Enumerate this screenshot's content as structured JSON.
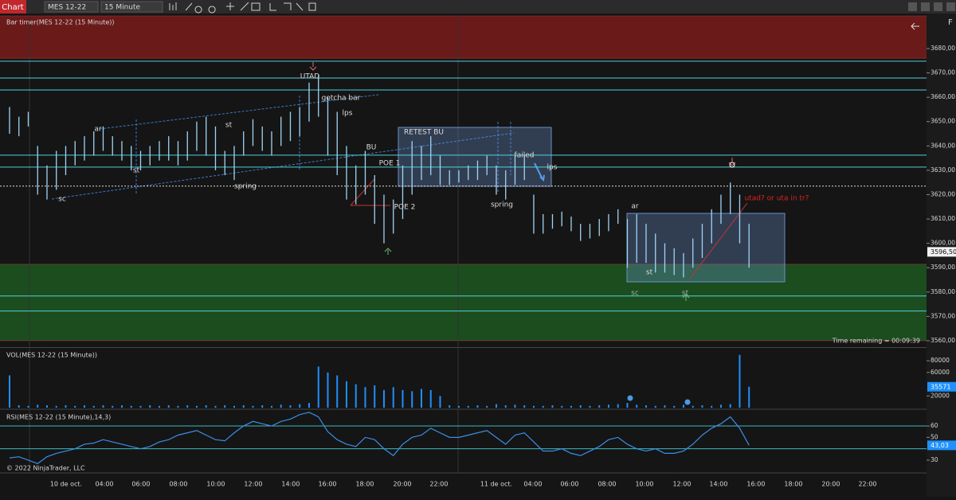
{
  "toolbar": {
    "tab": "Chart",
    "instrument": "MES 12-22",
    "interval": "15 Minute"
  },
  "copyright": "© 2022 NinjaTrader, LLC",
  "chart_data": [
    {
      "type": "ohlc",
      "title": "Bar timer(MES 12-22 (15 Minute))",
      "timer": "Time remaining = 00:09:39",
      "color": "#9fd4f5",
      "high": [
        3656,
        3652,
        3654,
        3640,
        3632,
        3638,
        3640,
        3642,
        3644,
        3646,
        3648,
        3644,
        3642,
        3640,
        3638,
        3640,
        3642,
        3644,
        3642,
        3646,
        3650,
        3652,
        3648,
        3638,
        3640,
        3646,
        3651,
        3648,
        3646,
        3652,
        3654,
        3656,
        3666,
        3669,
        3660,
        3654,
        3640,
        3632,
        3638,
        3628,
        3620,
        3618,
        3632,
        3642,
        3640,
        3644,
        3636,
        3630,
        3630,
        3632,
        3634,
        3636,
        3632,
        3630,
        3636,
        3636,
        3620,
        3612,
        3612,
        3613,
        3611,
        3608,
        3608,
        3610,
        3612,
        3614,
        3610,
        3612,
        3608,
        3604,
        3600,
        3598,
        3596,
        3602,
        3608,
        3614,
        3620,
        3625,
        3620,
        3608
      ],
      "low": [
        3645,
        3644,
        3648,
        3620,
        3618,
        3622,
        3628,
        3632,
        3634,
        3636,
        3638,
        3636,
        3634,
        3630,
        3630,
        3632,
        3634,
        3634,
        3632,
        3634,
        3638,
        3636,
        3630,
        3628,
        3626,
        3636,
        3640,
        3638,
        3636,
        3640,
        3642,
        3644,
        3650,
        3652,
        3636,
        3628,
        3618,
        3616,
        3620,
        3608,
        3600,
        3604,
        3610,
        3620,
        3626,
        3628,
        3624,
        3624,
        3625,
        3626,
        3626,
        3628,
        3620,
        3618,
        3624,
        3626,
        3604,
        3604,
        3606,
        3607,
        3605,
        3601,
        3602,
        3603,
        3605,
        3608,
        3590,
        3592,
        3592,
        3588,
        3588,
        3587,
        3586,
        3590,
        3594,
        3600,
        3608,
        3612,
        3600,
        3590
      ],
      "ylim": [
        3557.7,
        3693.4
      ],
      "xlim": [
        -1.02,
        97.96
      ],
      "yticks": [
        {
          "value": 3680,
          "label": "3680,00"
        },
        {
          "value": 3670,
          "label": "3670,00"
        },
        {
          "value": 3660,
          "label": "3660,00"
        },
        {
          "value": 3650,
          "label": "3650,00"
        },
        {
          "value": 3640,
          "label": "3640,00"
        },
        {
          "value": 3630,
          "label": "3630,00"
        },
        {
          "value": 3620,
          "label": "3620,00"
        },
        {
          "value": 3610,
          "label": "3610,00"
        },
        {
          "value": 3600,
          "label": "3600,00"
        },
        {
          "value": 3590,
          "label": "3590,00"
        },
        {
          "value": 3580,
          "label": "3580,00"
        },
        {
          "value": 3570,
          "label": "3570,00"
        },
        {
          "value": 3560,
          "label": "3560,00"
        }
      ],
      "xticks": [
        {
          "value": 6.04,
          "label": "10 de oct."
        },
        {
          "value": 10.13,
          "label": "04:00"
        },
        {
          "value": 14.04,
          "label": "06:00"
        },
        {
          "value": 18.04,
          "label": "08:00"
        },
        {
          "value": 22.04,
          "label": "10:00"
        },
        {
          "value": 26.04,
          "label": "12:00"
        },
        {
          "value": 30.04,
          "label": "14:00"
        },
        {
          "value": 33.96,
          "label": "16:00"
        },
        {
          "value": 37.96,
          "label": "18:00"
        },
        {
          "value": 41.96,
          "label": "20:00"
        },
        {
          "value": 45.87,
          "label": "22:00"
        },
        {
          "value": 52,
          "label": "11 de oct."
        },
        {
          "value": 55.91,
          "label": "04:00"
        },
        {
          "value": 59.83,
          "label": "06:00"
        },
        {
          "value": 63.83,
          "label": "08:00"
        },
        {
          "value": 67.83,
          "label": "10:00"
        },
        {
          "value": 71.83,
          "label": "12:00"
        },
        {
          "value": 75.74,
          "label": "14:00"
        },
        {
          "value": 79.74,
          "label": "16:00"
        },
        {
          "value": 83.74,
          "label": "18:00"
        },
        {
          "value": 87.74,
          "label": "20:00"
        },
        {
          "value": 91.66,
          "label": "22:00"
        }
      ],
      "last": {
        "value": 3596.5,
        "label": "3596,50"
      },
      "levels": [
        3674.8,
        3667.9,
        3663,
        3636.2,
        3631.3,
        3578.4,
        3572.2
      ],
      "zones": [
        {
          "from": 3676,
          "to": 3693.4,
          "color": "#6b1a1a"
        },
        {
          "from": 3560,
          "to": 3591.4,
          "color": "#1b4d1f"
        }
      ],
      "marker_line": 3623.5,
      "annotations": [
        "UTAD",
        "gotcha bar",
        "ar",
        "st",
        "sc",
        "st",
        "spring",
        "lps",
        "BU",
        "POE 1",
        "POE 2",
        "RETEST BU",
        "failed",
        "lps",
        "spring",
        "ar",
        "st",
        "sc",
        "st",
        "utad? or uta in tr?"
      ]
    },
    {
      "type": "bar",
      "title": "VOL(MES 12-22 (15 Minute))",
      "color": "#1e90ff",
      "values": [
        55000,
        4000,
        3000,
        5000,
        4000,
        3000,
        4000,
        3000,
        4000,
        3000,
        4000,
        3000,
        4000,
        3000,
        3000,
        4000,
        3000,
        4000,
        3000,
        4000,
        3000,
        4000,
        3000,
        4000,
        3000,
        4000,
        3000,
        4000,
        3000,
        5000,
        4000,
        6000,
        8000,
        70000,
        60000,
        55000,
        45000,
        40000,
        35000,
        38000,
        30000,
        35000,
        30000,
        28000,
        32000,
        30000,
        20000,
        4000,
        3000,
        3000,
        4000,
        3000,
        6000,
        4000,
        5000,
        4000,
        3000,
        3000,
        4000,
        3000,
        3000,
        4000,
        3000,
        4000,
        5000,
        6000,
        8000,
        5000,
        4000,
        3000,
        4000,
        3000,
        5000,
        3000,
        4000,
        3000,
        5000,
        6000,
        90000,
        35571
      ],
      "ylim": [
        0,
        100450
      ],
      "yticks": [
        20000,
        60000,
        80000
      ],
      "last": 35571
    },
    {
      "type": "line",
      "title": "RSI(MES 12-22 (15 Minute),14,3)",
      "color": "#3a8ee6",
      "values": [
        32,
        33,
        30,
        27,
        33,
        36,
        38,
        40,
        44,
        45,
        48,
        46,
        44,
        42,
        40,
        42,
        46,
        48,
        52,
        54,
        56,
        52,
        48,
        47,
        54,
        60,
        64,
        62,
        60,
        64,
        66,
        70,
        72,
        68,
        55,
        48,
        44,
        42,
        50,
        48,
        40,
        34,
        44,
        50,
        52,
        58,
        54,
        50,
        50,
        52,
        54,
        56,
        50,
        44,
        52,
        54,
        46,
        38,
        38,
        40,
        36,
        34,
        38,
        42,
        48,
        50,
        44,
        40,
        38,
        40,
        36,
        36,
        38,
        44,
        52,
        58,
        62,
        68,
        58,
        43.03
      ],
      "ylim": [
        21.6,
        73.3
      ],
      "yticks": [
        30,
        50,
        60
      ],
      "levels": [
        40,
        60
      ],
      "last": {
        "value": 43.03,
        "label": "43,03"
      }
    }
  ]
}
